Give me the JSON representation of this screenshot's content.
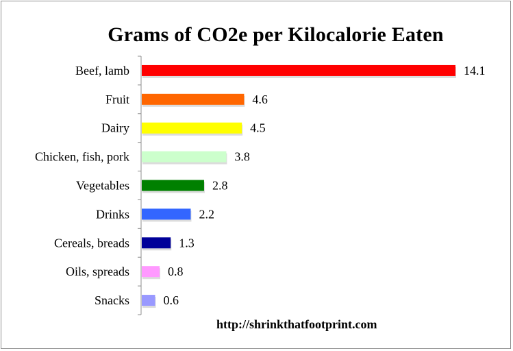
{
  "chart_data": {
    "type": "bar",
    "orientation": "horizontal",
    "title": "Grams of CO2e per Kilocalorie Eaten",
    "categories": [
      "Beef, lamb",
      "Fruit",
      "Dairy",
      "Chicken, fish, pork",
      "Vegetables",
      "Drinks",
      "Cereals, breads",
      "Oils, spreads",
      "Snacks"
    ],
    "values": [
      14.1,
      4.6,
      4.5,
      3.8,
      2.8,
      2.2,
      1.3,
      0.8,
      0.6
    ],
    "value_labels": [
      "14.1",
      "4.6",
      "4.5",
      "3.8",
      "2.8",
      "2.2",
      "1.3",
      "0.8",
      "0.6"
    ],
    "colors": [
      "#ff0000",
      "#ff6600",
      "#ffff00",
      "#ccffcc",
      "#008000",
      "#3366ff",
      "#000099",
      "#ff99ff",
      "#9999ff"
    ],
    "xlim": [
      0,
      14.1
    ],
    "xlabel": "",
    "ylabel": "",
    "grid": false,
    "legend": "none"
  },
  "source_text": "http://shrinkthatfootprint.com"
}
